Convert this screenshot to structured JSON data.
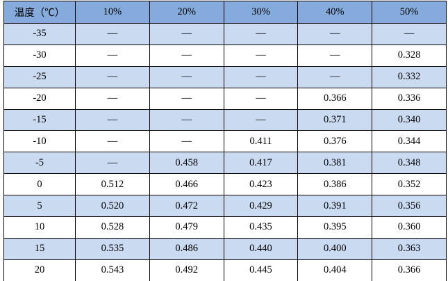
{
  "table": {
    "columns": [
      "温度（℃）",
      "10%",
      "20%",
      "30%",
      "40%",
      "50%"
    ],
    "rows": [
      [
        "-35",
        "—",
        "—",
        "—",
        "—",
        "—"
      ],
      [
        "-30",
        "—",
        "—",
        "—",
        "—",
        "0.328"
      ],
      [
        "-25",
        "—",
        "—",
        "—",
        "—",
        "0.332"
      ],
      [
        "-20",
        "—",
        "—",
        "—",
        "0.366",
        "0.336"
      ],
      [
        "-15",
        "—",
        "—",
        "—",
        "0.371",
        "0.340"
      ],
      [
        "-10",
        "—",
        "—",
        "0.411",
        "0.376",
        "0.344"
      ],
      [
        "-5",
        "—",
        "0.458",
        "0.417",
        "0.381",
        "0.348"
      ],
      [
        "0",
        "0.512",
        "0.466",
        "0.423",
        "0.386",
        "0.352"
      ],
      [
        "5",
        "0.520",
        "0.472",
        "0.429",
        "0.391",
        "0.356"
      ],
      [
        "10",
        "0.528",
        "0.479",
        "0.435",
        "0.395",
        "0.360"
      ],
      [
        "15",
        "0.535",
        "0.486",
        "0.440",
        "0.400",
        "0.363"
      ],
      [
        "20",
        "0.543",
        "0.492",
        "0.445",
        "0.404",
        "0.366"
      ]
    ]
  },
  "colors": {
    "header_bg": "#84ABDB",
    "stripe_bg": "#C9DAF1",
    "border": "#000000"
  }
}
